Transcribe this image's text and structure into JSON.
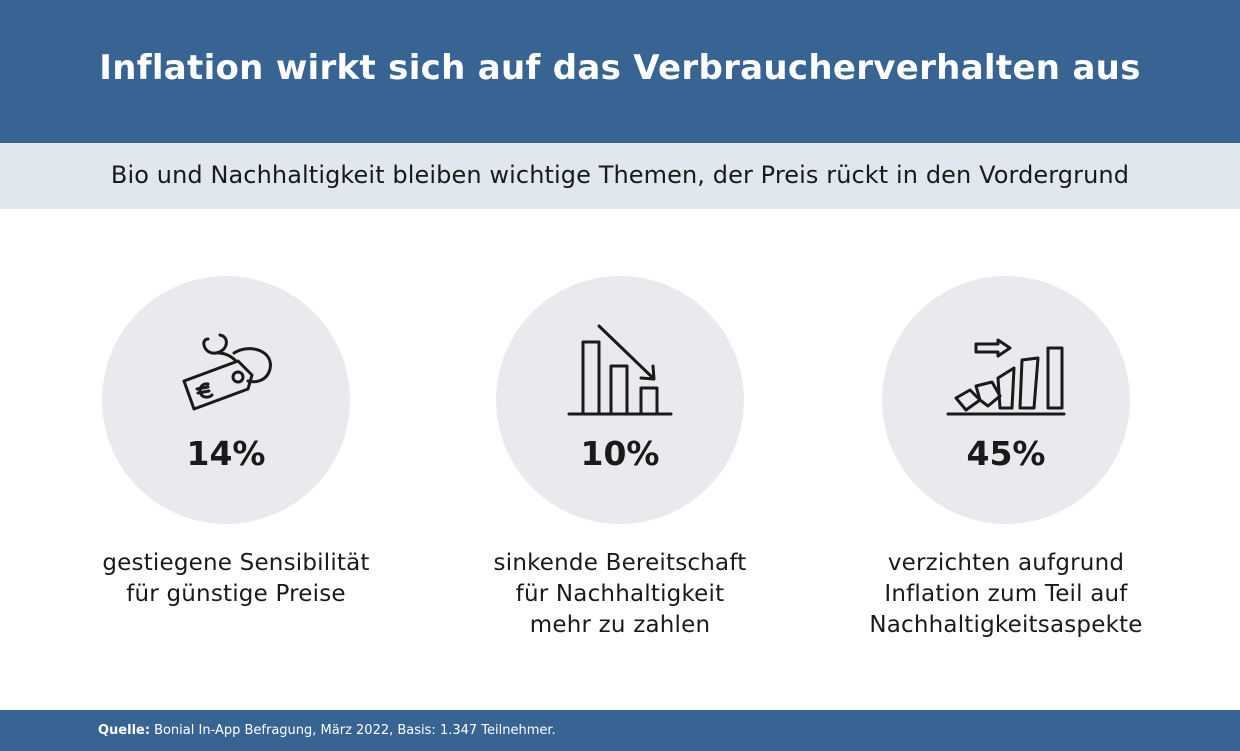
{
  "header": {
    "title": "Inflation wirkt sich auf das Verbraucherverhalten aus"
  },
  "subheader": {
    "text": "Bio und Nachhaltigkeit bleiben wichtige Themen, der Preis rückt in den Vordergrund"
  },
  "stats": [
    {
      "icon": "price-tag-euro-icon",
      "value": "14%",
      "caption_lines": [
        "gestiegene Sensibilität",
        "für günstige Preise"
      ]
    },
    {
      "icon": "declining-bar-chart-icon",
      "value": "10%",
      "caption_lines": [
        "sinkende Bereitschaft",
        "für Nachhaltigkeit",
        "mehr zu zahlen"
      ]
    },
    {
      "icon": "rising-bar-chart-icon",
      "value": "45%",
      "caption_lines": [
        "verzichten aufgrund",
        "Inflation zum Teil auf",
        "Nachhaltigkeitsaspekte"
      ]
    }
  ],
  "footer": {
    "source_label": "Quelle:",
    "source_text": "Bonial In-App Befragung, März 2022, Basis: 1.347 Teilnehmer."
  },
  "colors": {
    "brand_blue": "#386494",
    "subheader_bg": "#e1e7ef",
    "circle_bg": "#e9e9ee"
  }
}
